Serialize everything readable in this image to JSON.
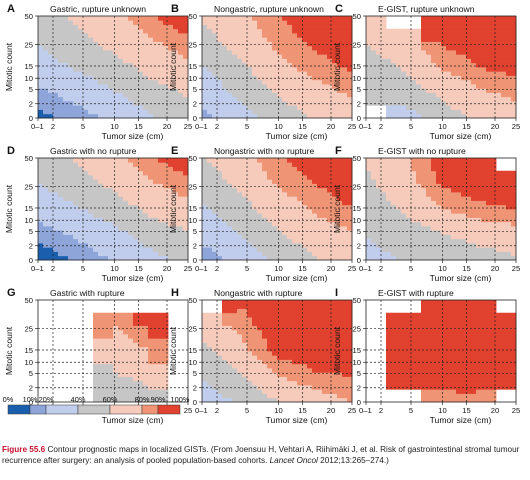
{
  "chart_data": [
    {
      "type": "heatmap",
      "letter": "A",
      "title": "Gastric, rupture unknown",
      "shape": [
        [
          0.06,
          0.13,
          0.22,
          0.38,
          0.48
        ],
        [
          0.16,
          0.26,
          0.38,
          0.52,
          0.62
        ],
        [
          0.3,
          0.42,
          0.52,
          0.66,
          0.76
        ],
        [
          0.42,
          0.54,
          0.66,
          0.78,
          0.88
        ],
        [
          0.52,
          0.64,
          0.76,
          0.9,
          0.97
        ]
      ]
    },
    {
      "type": "heatmap",
      "letter": "B",
      "title": "Nongastric, rupture unknown",
      "shape": [
        [
          0.16,
          0.3,
          0.48,
          0.62,
          0.7
        ],
        [
          0.26,
          0.44,
          0.62,
          0.74,
          0.82
        ],
        [
          0.4,
          0.56,
          0.74,
          0.86,
          0.92
        ],
        [
          0.52,
          0.68,
          0.84,
          0.92,
          0.97
        ],
        [
          0.62,
          0.76,
          0.9,
          0.97,
          0.99
        ]
      ]
    },
    {
      "type": "heatmap",
      "letter": "C",
      "title": "E-GIST, rupture unknown",
      "shape": [
        [
          null,
          0.3,
          0.5,
          0.62,
          0.7
        ],
        [
          0.4,
          0.5,
          0.64,
          0.78,
          0.84
        ],
        [
          0.5,
          0.62,
          0.82,
          0.9,
          0.94
        ],
        [
          0.62,
          0.72,
          0.92,
          0.96,
          0.97
        ],
        [
          0.7,
          null,
          0.94,
          0.97,
          0.98
        ]
      ]
    },
    {
      "type": "heatmap",
      "letter": "D",
      "title": "Gastric with no rupture",
      "shape": [
        [
          0.04,
          0.1,
          0.2,
          0.34,
          0.44
        ],
        [
          0.12,
          0.22,
          0.34,
          0.48,
          0.58
        ],
        [
          0.26,
          0.38,
          0.5,
          0.64,
          0.74
        ],
        [
          0.4,
          0.52,
          0.64,
          0.78,
          0.88
        ],
        [
          0.5,
          0.62,
          0.76,
          0.9,
          0.96
        ]
      ]
    },
    {
      "type": "heatmap",
      "letter": "E",
      "title": "Nongastric with no rupture",
      "shape": [
        [
          0.12,
          0.26,
          0.44,
          0.58,
          0.66
        ],
        [
          0.24,
          0.4,
          0.58,
          0.7,
          0.78
        ],
        [
          0.36,
          0.52,
          0.7,
          0.82,
          0.9
        ],
        [
          0.48,
          0.64,
          0.82,
          0.9,
          0.96
        ],
        [
          0.58,
          0.74,
          0.88,
          0.96,
          0.99
        ]
      ]
    },
    {
      "type": "heatmap",
      "letter": "F",
      "title": "E-GIST with no rupture",
      "shape": [
        [
          0.36,
          0.4,
          0.44,
          0.5,
          0.56
        ],
        [
          0.4,
          0.48,
          0.58,
          0.68,
          0.74
        ],
        [
          0.48,
          0.62,
          0.8,
          0.88,
          0.9
        ],
        [
          0.56,
          0.72,
          0.92,
          0.95,
          0.96
        ],
        [
          0.62,
          0.78,
          0.95,
          0.97,
          null
        ]
      ]
    },
    {
      "type": "heatmap",
      "letter": "G",
      "title": "Gastric with rupture",
      "shape": [
        [
          null,
          null,
          0.44,
          0.52,
          null
        ],
        [
          null,
          null,
          0.58,
          0.64,
          null
        ],
        [
          null,
          null,
          0.7,
          0.8,
          null
        ],
        [
          null,
          null,
          0.8,
          0.92,
          null
        ],
        [
          null,
          null,
          null,
          null,
          null
        ]
      ]
    },
    {
      "type": "heatmap",
      "letter": "H",
      "title": "Nongastric with rupture",
      "shape": [
        [
          0.3,
          0.42,
          0.58,
          0.72,
          0.8
        ],
        [
          0.4,
          0.58,
          0.8,
          0.88,
          0.9
        ],
        [
          0.54,
          0.74,
          0.94,
          0.96,
          0.97
        ],
        [
          0.66,
          0.84,
          0.98,
          0.99,
          0.99
        ],
        [
          null,
          0.92,
          0.99,
          0.99,
          0.99
        ]
      ]
    },
    {
      "type": "heatmap",
      "letter": "I",
      "title": "E-GIST with rupture",
      "shape": [
        [
          null,
          null,
          0.86,
          0.88,
          null
        ],
        [
          null,
          0.9,
          0.94,
          0.95,
          0.96
        ],
        [
          null,
          0.92,
          0.97,
          0.98,
          0.98
        ],
        [
          null,
          0.93,
          0.98,
          0.99,
          0.99
        ],
        [
          null,
          null,
          0.98,
          0.99,
          null
        ]
      ]
    }
  ],
  "x_ticks": [
    "0–1",
    "2",
    "5",
    "10",
    "15",
    "20",
    "25"
  ],
  "y_ticks": [
    "0",
    "2",
    "5",
    "10",
    "15",
    "25",
    "50"
  ],
  "x_label": "Tumor size (cm)",
  "y_label": "Mitotic count",
  "legend": {
    "labels": [
      "0%",
      "10%",
      "20%",
      "40%",
      "60%",
      "80%",
      "90%",
      "100%"
    ],
    "colors": [
      "#1a5fae",
      "#8ea5da",
      "#c0cdec",
      "#c6c6c6",
      "#f6cbbb",
      "#ef9475",
      "#e1412f"
    ]
  },
  "caption": {
    "label": "Figure 55.6",
    "text": " Contour prognostic maps in localized GISTs. (From Joensuu H, Vehtari A, Riihimäki J, et al. Risk of gastrointestinal stromal tumour recurrence after surgery: an analysis of pooled population-based cohorts. ",
    "journal": "Lancet Oncol",
    "citation": " 2012;13:265–274.)"
  }
}
